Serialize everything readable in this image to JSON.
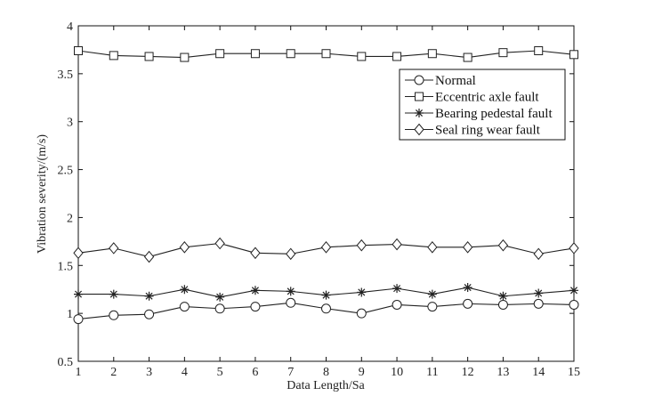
{
  "chart_data": {
    "type": "line",
    "title": "",
    "xlabel": "Data Length/Sa",
    "ylabel": "Vibration severity/(m/s)",
    "xlim": [
      1,
      15
    ],
    "ylim": [
      0.5,
      4
    ],
    "x": [
      1,
      2,
      3,
      4,
      5,
      6,
      7,
      8,
      9,
      10,
      11,
      12,
      13,
      14,
      15
    ],
    "xticks": [
      "1",
      "2",
      "3",
      "4",
      "5",
      "6",
      "7",
      "8",
      "9",
      "10",
      "11",
      "12",
      "13",
      "14",
      "15"
    ],
    "yticks": [
      "0.5",
      "1",
      "1.5",
      "2",
      "2.5",
      "3",
      "3.5",
      "4"
    ],
    "yticks_values": [
      0.5,
      1,
      1.5,
      2,
      2.5,
      3,
      3.5,
      4
    ],
    "grid": false,
    "legend_position": "top-right",
    "series": [
      {
        "name": "Normal",
        "marker": "circle",
        "values": [
          0.94,
          0.98,
          0.99,
          1.07,
          1.05,
          1.07,
          1.11,
          1.05,
          1.0,
          1.09,
          1.07,
          1.1,
          1.09,
          1.1,
          1.09
        ]
      },
      {
        "name": "Eccentric axle fault",
        "marker": "square",
        "values": [
          3.74,
          3.69,
          3.68,
          3.67,
          3.71,
          3.71,
          3.71,
          3.71,
          3.68,
          3.68,
          3.71,
          3.67,
          3.72,
          3.74,
          3.7
        ]
      },
      {
        "name": "Bearing pedestal fault",
        "marker": "star",
        "values": [
          1.2,
          1.2,
          1.18,
          1.25,
          1.17,
          1.24,
          1.23,
          1.19,
          1.22,
          1.26,
          1.2,
          1.27,
          1.18,
          1.21,
          1.24
        ]
      },
      {
        "name": "Seal ring wear fault",
        "marker": "diamond",
        "values": [
          1.63,
          1.68,
          1.59,
          1.69,
          1.73,
          1.63,
          1.62,
          1.69,
          1.71,
          1.72,
          1.69,
          1.69,
          1.71,
          1.62,
          1.68
        ]
      }
    ],
    "colors": {
      "line": "#222222",
      "axis": "#111111"
    }
  }
}
